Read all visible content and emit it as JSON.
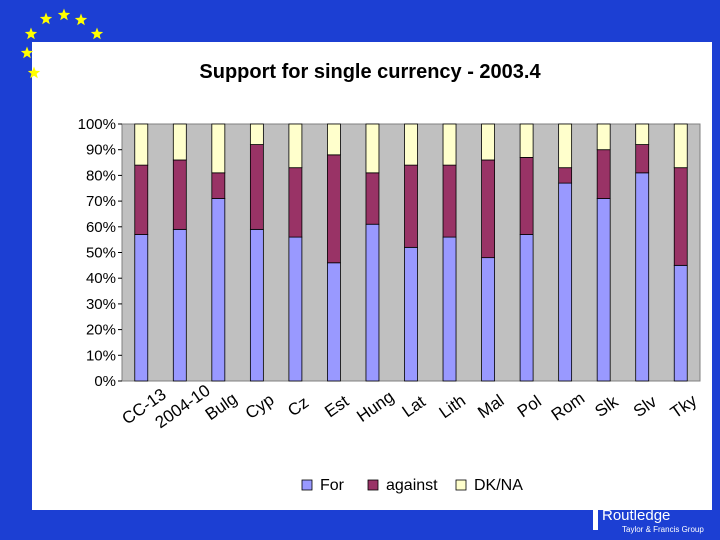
{
  "chart_data": {
    "type": "bar",
    "stacked": true,
    "title": "Support for single currency - 2003.4",
    "xlabel": "",
    "ylabel": "",
    "ylim": [
      0,
      100
    ],
    "yticks": [
      "0%",
      "10%",
      "20%",
      "30%",
      "40%",
      "50%",
      "60%",
      "70%",
      "80%",
      "90%",
      "100%"
    ],
    "categories": [
      "CC-13",
      "2004-10",
      "Bulg",
      "Cyp",
      "Cz",
      "Est",
      "Hung",
      "Lat",
      "Lith",
      "Mal",
      "Pol",
      "Rom",
      "Slk",
      "Slv",
      "Tky"
    ],
    "series": [
      {
        "name": "For",
        "color": "#9999ff",
        "values": [
          57,
          59,
          71,
          59,
          56,
          46,
          61,
          52,
          56,
          48,
          57,
          77,
          71,
          81,
          45
        ]
      },
      {
        "name": "against",
        "color": "#993366",
        "values": [
          27,
          27,
          10,
          33,
          27,
          42,
          20,
          32,
          28,
          38,
          30,
          6,
          19,
          11,
          38
        ]
      },
      {
        "name": "DK/NA",
        "color": "#ffffcc",
        "values": [
          16,
          14,
          19,
          8,
          17,
          12,
          19,
          16,
          16,
          14,
          13,
          17,
          10,
          8,
          17
        ]
      }
    ],
    "legend_position": "bottom",
    "grid": false,
    "plot_background": "#c0c0c0"
  },
  "footer": {
    "publisher": "Routledge",
    "group": "Taylor & Francis Group",
    "logo_icon": "routledge-r-icon"
  },
  "decoration": {
    "stars_icon": "eu-stars-icon"
  }
}
